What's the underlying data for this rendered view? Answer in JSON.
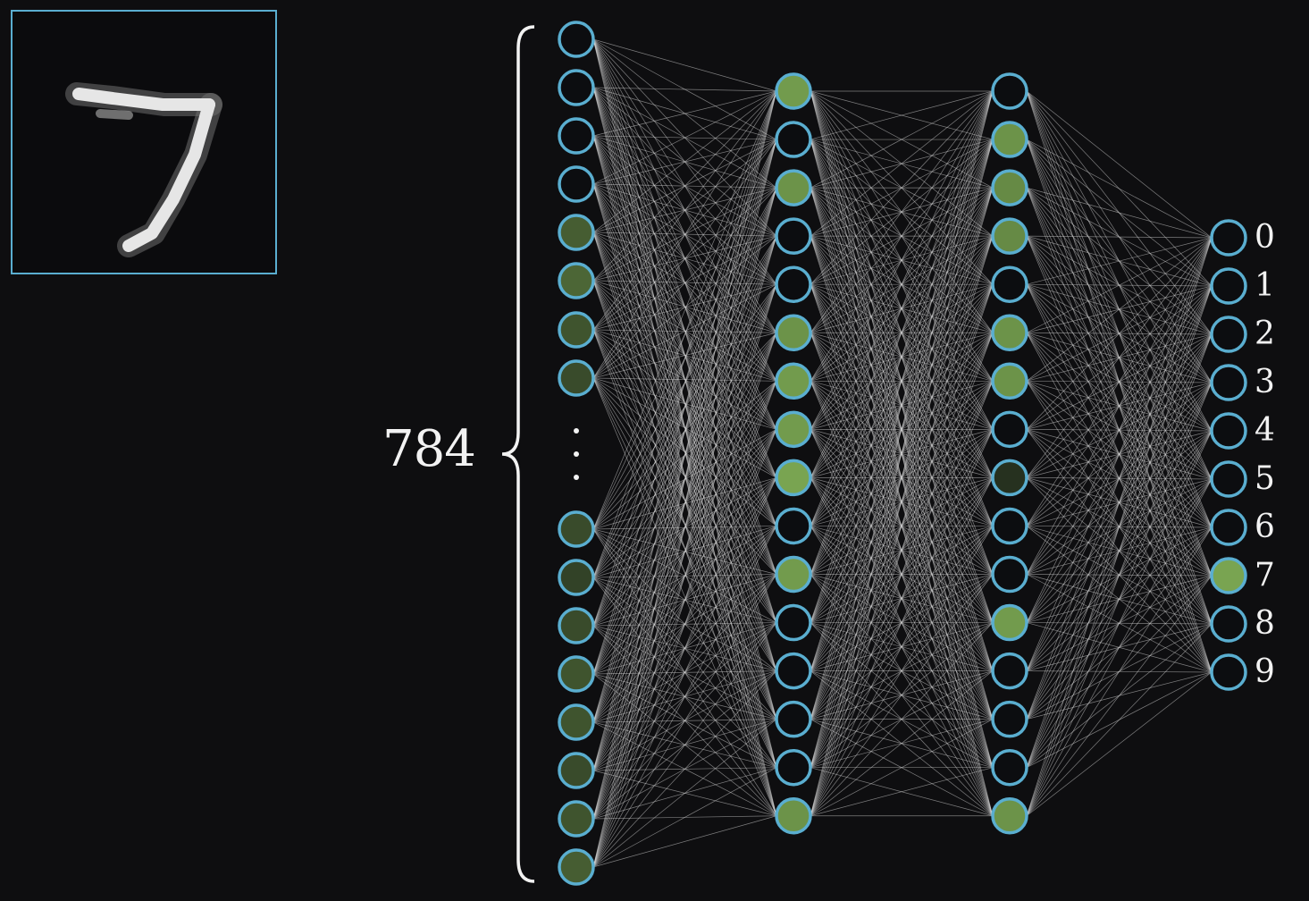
{
  "input_image": {
    "digit": "7"
  },
  "network": {
    "input_size_label": "784",
    "input_layer": {
      "visible_top_activations": [
        0.0,
        0.0,
        0.0,
        0.0,
        0.45,
        0.5,
        0.4,
        0.35
      ],
      "visible_bottom_activations": [
        0.35,
        0.3,
        0.35,
        0.4,
        0.4,
        0.35,
        0.4,
        0.45
      ],
      "ellipsis": "⋮"
    },
    "hidden_layer_1": {
      "activations": [
        0.8,
        0.0,
        0.75,
        0.0,
        0.0,
        0.75,
        0.8,
        0.8,
        0.85,
        0.0,
        0.8,
        0.0,
        0.0,
        0.0,
        0.0,
        0.75
      ]
    },
    "hidden_layer_2": {
      "activations": [
        0.0,
        0.75,
        0.7,
        0.7,
        0.0,
        0.75,
        0.75,
        0.0,
        0.2,
        0.0,
        0.0,
        0.8,
        0.0,
        0.0,
        0.0,
        0.75
      ]
    },
    "output_layer": {
      "labels": [
        "0",
        "1",
        "2",
        "3",
        "4",
        "5",
        "6",
        "7",
        "8",
        "9"
      ],
      "activations": [
        0.0,
        0.0,
        0.0,
        0.0,
        0.0,
        0.0,
        0.0,
        0.85,
        0.0,
        0.0
      ]
    }
  },
  "colors": {
    "background": "#0e0e10",
    "neuron_stroke": "#5aaed0",
    "neuron_active": "#8cbf5c",
    "neuron_inactive": "#0c0d10",
    "edge": "#d8d8d8",
    "text": "#f2f2f2"
  }
}
